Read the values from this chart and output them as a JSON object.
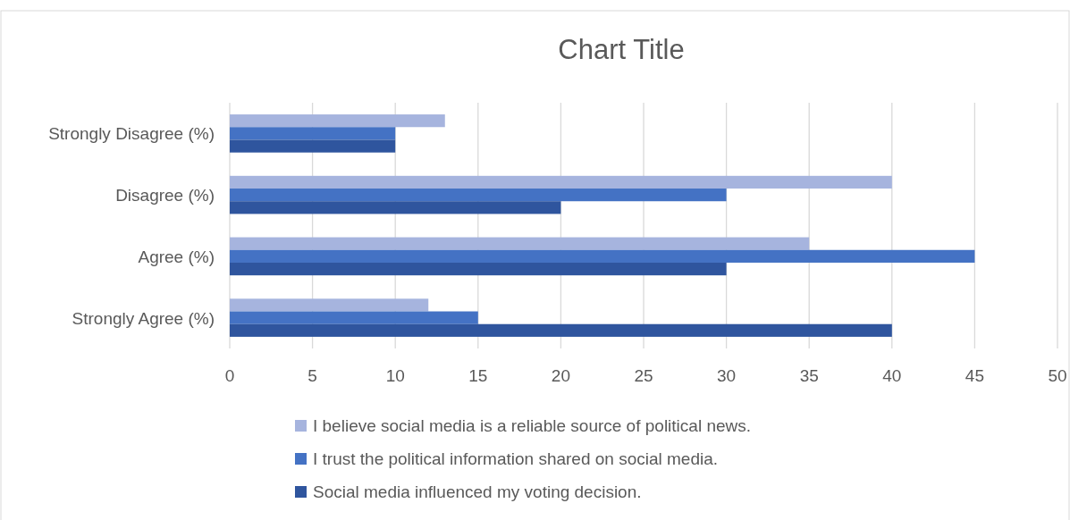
{
  "chart_data": {
    "type": "bar",
    "orientation": "horizontal",
    "title": "Chart Title",
    "categories": [
      "Strongly Disagree (%)",
      "Disagree (%)",
      "Agree (%)",
      "Strongly Agree (%)"
    ],
    "series": [
      {
        "name": "I believe social media is a reliable source of political news.",
        "color": "#a6b4de",
        "values": [
          13,
          40,
          35,
          12
        ]
      },
      {
        "name": "I trust the political information shared on social media.",
        "color": "#4472c4",
        "values": [
          10,
          30,
          45,
          15
        ]
      },
      {
        "name": "Social media influenced my voting decision.",
        "color": "#2f559e",
        "values": [
          10,
          20,
          30,
          40
        ]
      }
    ],
    "xlim": [
      0,
      50
    ],
    "xticks": [
      0,
      5,
      10,
      15,
      20,
      25,
      30,
      35,
      40,
      45,
      50
    ],
    "grid": "x",
    "legend": "bottom"
  }
}
